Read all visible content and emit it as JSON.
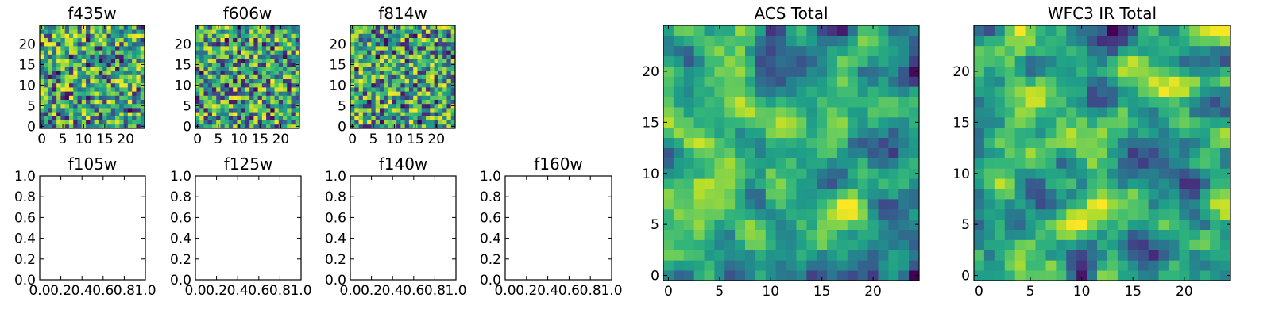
{
  "chart_data": [
    {
      "type": "heatmap",
      "title": "f435w",
      "xlim": [
        -0.5,
        24.5
      ],
      "ylim": [
        -0.5,
        24.5
      ],
      "xticks": [
        "0",
        "5",
        "10",
        "15",
        "20"
      ],
      "yticks": [
        "0",
        "5",
        "10",
        "15",
        "20"
      ],
      "grid_size": 25,
      "colormap": "viridis",
      "seed": 11
    },
    {
      "type": "heatmap",
      "title": "f606w",
      "xlim": [
        -0.5,
        24.5
      ],
      "ylim": [
        -0.5,
        24.5
      ],
      "xticks": [
        "0",
        "5",
        "10",
        "15",
        "20"
      ],
      "yticks": [
        "0",
        "5",
        "10",
        "15",
        "20"
      ],
      "grid_size": 25,
      "colormap": "viridis",
      "seed": 23
    },
    {
      "type": "heatmap",
      "title": "f814w",
      "xlim": [
        -0.5,
        24.5
      ],
      "ylim": [
        -0.5,
        24.5
      ],
      "xticks": [
        "0",
        "5",
        "10",
        "15",
        "20"
      ],
      "yticks": [
        "0",
        "5",
        "10",
        "15",
        "20"
      ],
      "grid_size": 25,
      "colormap": "viridis",
      "seed": 37
    },
    {
      "type": "empty",
      "title": "f105w",
      "xlim": [
        0,
        1
      ],
      "ylim": [
        0,
        1
      ],
      "xticks": [
        "0.0",
        "0.2",
        "0.4",
        "0.6",
        "0.8",
        "1.0"
      ],
      "yticks": [
        "0.0",
        "0.2",
        "0.4",
        "0.6",
        "0.8",
        "1.0"
      ]
    },
    {
      "type": "empty",
      "title": "f125w",
      "xlim": [
        0,
        1
      ],
      "ylim": [
        0,
        1
      ],
      "xticks": [
        "0.0",
        "0.2",
        "0.4",
        "0.6",
        "0.8",
        "1.0"
      ],
      "yticks": [
        "0.0",
        "0.2",
        "0.4",
        "0.6",
        "0.8",
        "1.0"
      ]
    },
    {
      "type": "empty",
      "title": "f140w",
      "xlim": [
        0,
        1
      ],
      "ylim": [
        0,
        1
      ],
      "xticks": [
        "0.0",
        "0.2",
        "0.4",
        "0.6",
        "0.8",
        "1.0"
      ],
      "yticks": [
        "0.0",
        "0.2",
        "0.4",
        "0.6",
        "0.8",
        "1.0"
      ]
    },
    {
      "type": "empty",
      "title": "f160w",
      "xlim": [
        0,
        1
      ],
      "ylim": [
        0,
        1
      ],
      "xticks": [
        "0.0",
        "0.2",
        "0.4",
        "0.6",
        "0.8",
        "1.0"
      ],
      "yticks": [
        "0.0",
        "0.2",
        "0.4",
        "0.6",
        "0.8",
        "1.0"
      ]
    },
    {
      "type": "heatmap",
      "title": "ACS Total",
      "xlim": [
        -0.5,
        24.5
      ],
      "ylim": [
        -0.5,
        24.5
      ],
      "xticks": [
        "0",
        "5",
        "10",
        "15",
        "20"
      ],
      "yticks": [
        "0",
        "5",
        "10",
        "15",
        "20"
      ],
      "grid_size": 25,
      "colormap": "viridis",
      "seed": 53
    },
    {
      "type": "heatmap",
      "title": "WFC3 IR Total",
      "xlim": [
        -0.5,
        24.5
      ],
      "ylim": [
        -0.5,
        24.5
      ],
      "xticks": [
        "0",
        "5",
        "10",
        "15",
        "20"
      ],
      "yticks": [
        "0",
        "5",
        "10",
        "15",
        "20"
      ],
      "grid_size": 25,
      "colormap": "viridis",
      "seed": 71
    }
  ]
}
